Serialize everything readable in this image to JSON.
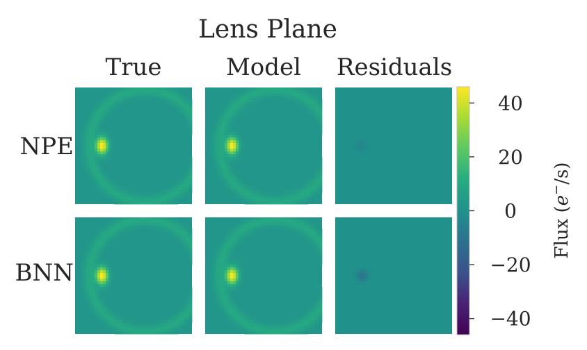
{
  "chart_data": {
    "type": "heatmap",
    "title": "Lens Plane",
    "columns": [
      "True",
      "Model",
      "Residuals"
    ],
    "rows": [
      "NPE",
      "BNN"
    ],
    "colormap": "viridis",
    "colorbar": {
      "label_main": "Flux (",
      "label_math": "e",
      "label_sup": "−",
      "label_end": "/s)",
      "vmin": -46,
      "vmax": 46,
      "ticks": [
        40,
        20,
        0,
        -20,
        -40
      ],
      "tick_labels": [
        "40",
        "20",
        "0",
        "−20",
        "−40"
      ]
    },
    "panels": [
      {
        "row": "NPE",
        "col": "True",
        "background": 2,
        "ring_radius": 0.48,
        "ring_peak": 8,
        "source_peak": 46,
        "source_pos": [
          0.23,
          0.5
        ]
      },
      {
        "row": "NPE",
        "col": "Model",
        "background": 2,
        "ring_radius": 0.48,
        "ring_peak": 8,
        "source_peak": 45,
        "source_pos": [
          0.23,
          0.5
        ]
      },
      {
        "row": "NPE",
        "col": "Residuals",
        "background": 0,
        "min_value": -4,
        "min_pos": [
          0.22,
          0.5
        ]
      },
      {
        "row": "BNN",
        "col": "True",
        "background": 2,
        "ring_radius": 0.48,
        "ring_peak": 8,
        "source_peak": 46,
        "source_pos": [
          0.23,
          0.5
        ]
      },
      {
        "row": "BNN",
        "col": "Model",
        "background": 2,
        "ring_radius": 0.48,
        "ring_peak": 8,
        "source_peak": 45,
        "source_pos": [
          0.23,
          0.5
        ]
      },
      {
        "row": "BNN",
        "col": "Residuals",
        "background": 0,
        "min_value": -10,
        "min_pos": [
          0.23,
          0.5
        ]
      }
    ]
  }
}
